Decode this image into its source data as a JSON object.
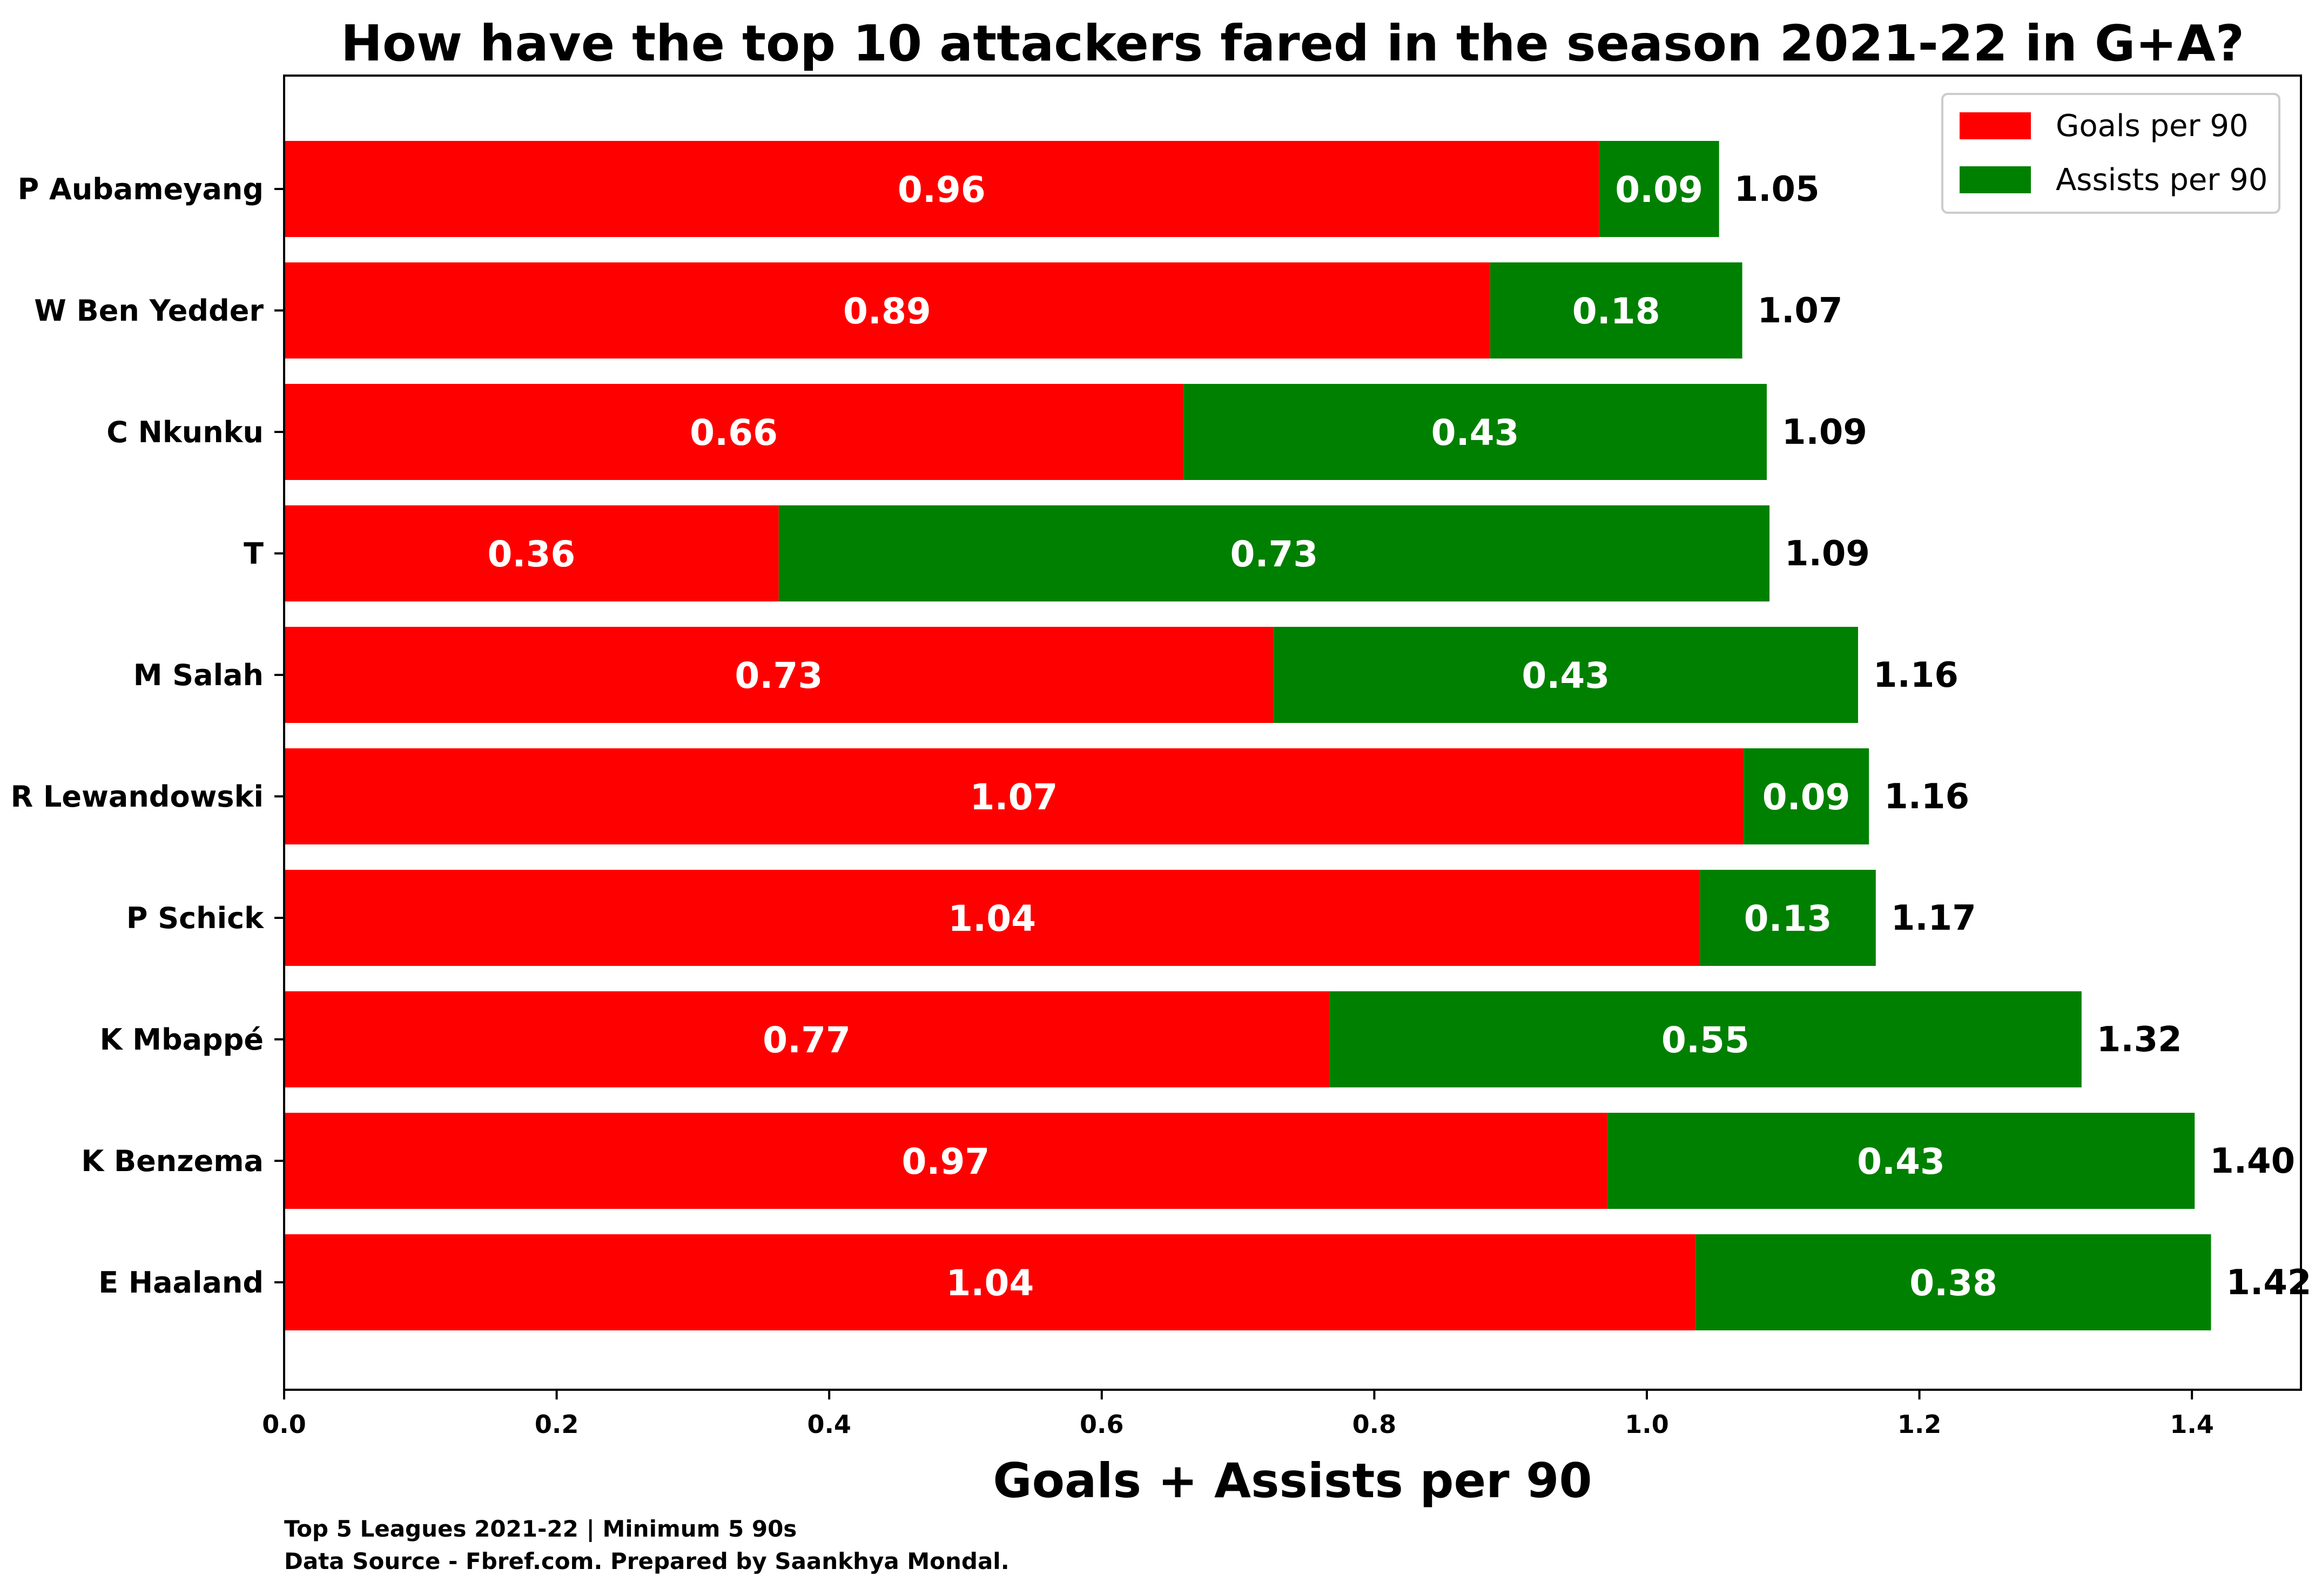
{
  "chart_data": {
    "type": "bar",
    "orientation": "horizontal",
    "stacked": true,
    "title": "How have the top 10 attackers fared in the season 2021-22 in G+A?",
    "xlabel": "Goals + Assists per 90",
    "ylabel": "",
    "xlim": [
      0,
      1.48
    ],
    "xticks": [
      "0.0",
      "0.2",
      "0.4",
      "0.6",
      "0.8",
      "1.0",
      "1.2",
      "1.4"
    ],
    "grid": false,
    "legend_position": "top-right",
    "categories": [
      "P Aubameyang",
      "W Ben Yedder",
      "C Nkunku",
      "T",
      "M Salah",
      "R Lewandowski",
      "P Schick",
      "K Mbappé",
      "K Benzema",
      "E Haaland"
    ],
    "series": [
      {
        "name": "Goals per 90",
        "color": "#ff0000",
        "values": [
          0.965,
          0.885,
          0.66,
          0.363,
          0.726,
          1.071,
          1.039,
          0.767,
          0.971,
          1.036
        ],
        "labels": [
          "0.96",
          "0.89",
          "0.66",
          "0.36",
          "0.73",
          "1.07",
          "1.04",
          "0.77",
          "0.97",
          "1.04"
        ]
      },
      {
        "name": "Assists per 90",
        "color": "#008000",
        "values": [
          0.088,
          0.185,
          0.428,
          0.727,
          0.429,
          0.092,
          0.129,
          0.552,
          0.431,
          0.378
        ],
        "labels": [
          "0.09",
          "0.18",
          "0.43",
          "0.73",
          "0.43",
          "0.09",
          "0.13",
          "0.55",
          "0.43",
          "0.38"
        ]
      }
    ],
    "totals": [
      "1.05",
      "1.07",
      "1.09",
      "1.09",
      "1.16",
      "1.16",
      "1.17",
      "1.32",
      "1.40",
      "1.42"
    ],
    "footnotes": [
      "Top 5 Leagues 2021-22 | Minimum 5 90s",
      "Data Source - Fbref.com. Prepared by Saankhya Mondal."
    ]
  }
}
